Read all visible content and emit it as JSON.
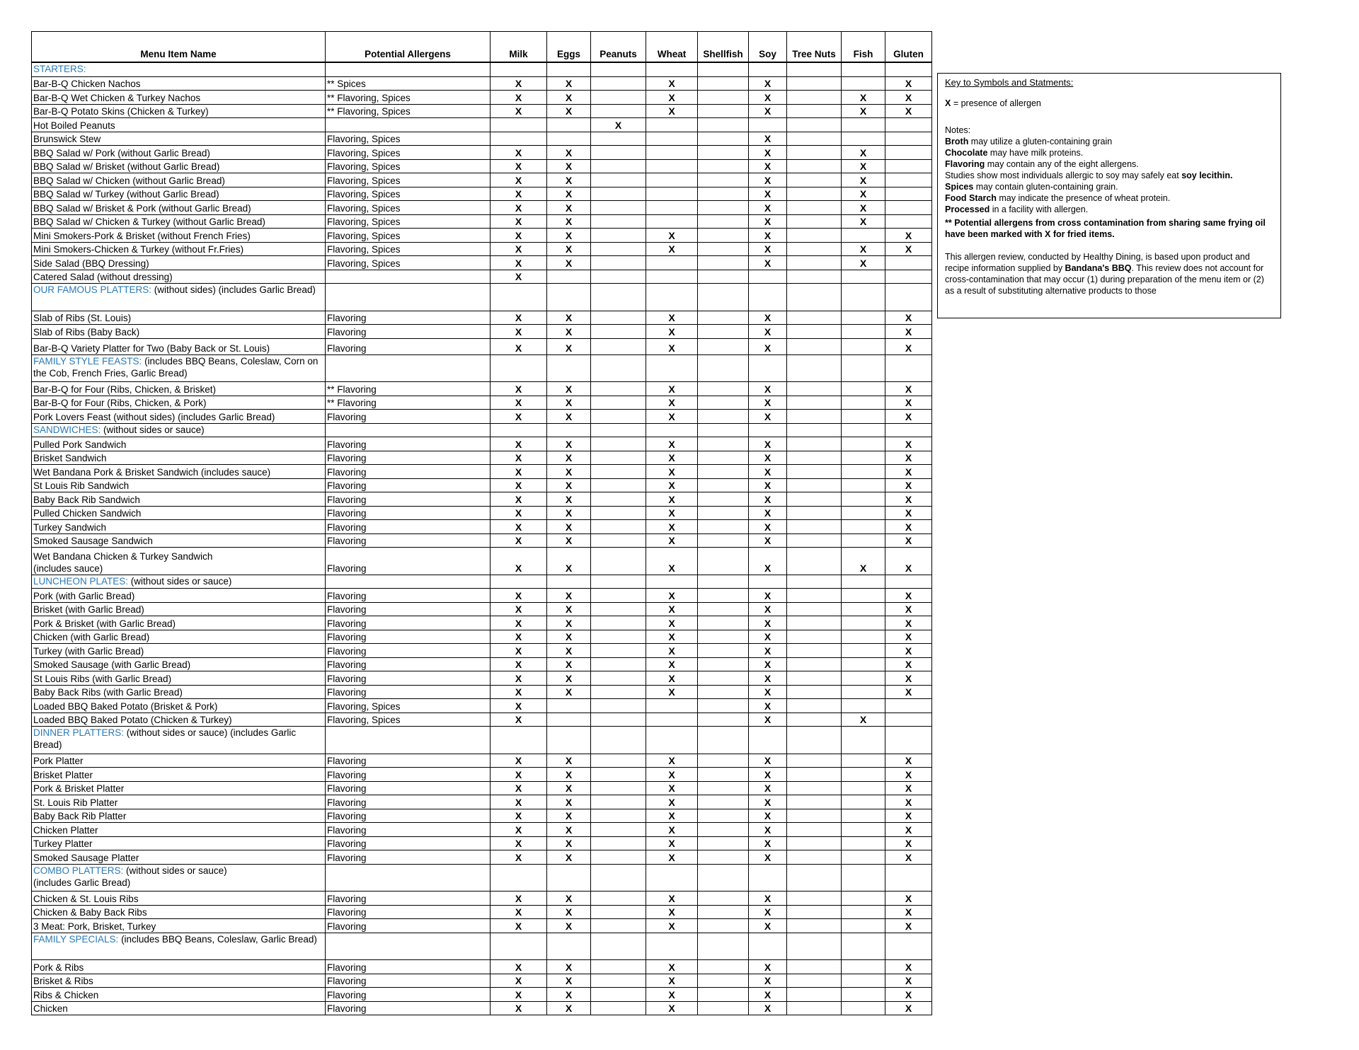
{
  "columns": {
    "name": "Menu Item Name",
    "potential": "Potential Allergens",
    "allergens": [
      "Milk",
      "Eggs",
      "Peanuts",
      "Wheat",
      "Shellfish",
      "Soy",
      "Tree Nuts",
      "Fish",
      "Gluten"
    ]
  },
  "mark_symbol": "X",
  "colors": {
    "section_heading": "#2a7ab8",
    "text": "#000000"
  },
  "rows": [
    {
      "section": "STARTERS:",
      "suffix": ""
    },
    {
      "name": "Bar-B-Q Chicken Nachos",
      "potential": "** Spices",
      "marks": [
        "Milk",
        "Eggs",
        "Wheat",
        "Soy",
        "Gluten"
      ]
    },
    {
      "name": "Bar-B-Q Wet Chicken & Turkey Nachos",
      "potential": "** Flavoring, Spices",
      "marks": [
        "Milk",
        "Eggs",
        "Wheat",
        "Soy",
        "Fish",
        "Gluten"
      ]
    },
    {
      "name": "Bar-B-Q Potato Skins (Chicken & Turkey)",
      "potential": "** Flavoring, Spices",
      "marks": [
        "Milk",
        "Eggs",
        "Wheat",
        "Soy",
        "Fish",
        "Gluten"
      ]
    },
    {
      "name": "Hot Boiled Peanuts",
      "potential": "",
      "marks": [
        "Peanuts"
      ]
    },
    {
      "name": "Brunswick Stew",
      "potential": "Flavoring, Spices",
      "marks": [
        "Soy"
      ]
    },
    {
      "name": "BBQ Salad w/ Pork (without Garlic Bread)",
      "potential": "Flavoring, Spices",
      "marks": [
        "Milk",
        "Eggs",
        "Soy",
        "Fish"
      ]
    },
    {
      "name": "BBQ Salad w/ Brisket (without Garlic Bread)",
      "potential": "Flavoring, Spices",
      "marks": [
        "Milk",
        "Eggs",
        "Soy",
        "Fish"
      ]
    },
    {
      "name": "BBQ Salad w/ Chicken (without Garlic Bread)",
      "potential": "Flavoring, Spices",
      "marks": [
        "Milk",
        "Eggs",
        "Soy",
        "Fish"
      ]
    },
    {
      "name": "BBQ Salad w/ Turkey (without Garlic Bread)",
      "potential": "Flavoring, Spices",
      "marks": [
        "Milk",
        "Eggs",
        "Soy",
        "Fish"
      ]
    },
    {
      "name": "BBQ Salad w/ Brisket & Pork (without Garlic Bread)",
      "potential": "Flavoring, Spices",
      "marks": [
        "Milk",
        "Eggs",
        "Soy",
        "Fish"
      ]
    },
    {
      "name": "BBQ Salad w/ Chicken & Turkey (without Garlic Bread)",
      "potential": "Flavoring, Spices",
      "marks": [
        "Milk",
        "Eggs",
        "Soy",
        "Fish"
      ]
    },
    {
      "name": "Mini Smokers-Pork & Brisket (without French Fries)",
      "potential": "Flavoring, Spices",
      "marks": [
        "Milk",
        "Eggs",
        "Wheat",
        "Soy",
        "Gluten"
      ]
    },
    {
      "name": "Mini Smokers-Chicken & Turkey (without Fr.Fries)",
      "potential": "Flavoring, Spices",
      "marks": [
        "Milk",
        "Eggs",
        "Wheat",
        "Soy",
        "Fish",
        "Gluten"
      ]
    },
    {
      "name": "Side Salad (BBQ Dressing)",
      "potential": "Flavoring, Spices",
      "marks": [
        "Milk",
        "Eggs",
        "Soy",
        "Fish"
      ]
    },
    {
      "name": "Catered Salad (without dressing)",
      "potential": "",
      "marks": [
        "Milk"
      ]
    },
    {
      "section": "OUR FAMOUS PLATTERS:",
      "suffix": " (without sides)             (includes Garlic Bread)"
    },
    {
      "name": "Slab of Ribs (St. Louis)",
      "potential": "Flavoring",
      "marks": [
        "Milk",
        "Eggs",
        "Wheat",
        "Soy",
        "Gluten"
      ]
    },
    {
      "name": "Slab of Ribs (Baby Back)",
      "potential": "Flavoring",
      "marks": [
        "Milk",
        "Eggs",
        "Wheat",
        "Soy",
        "Gluten"
      ]
    },
    {
      "name": "Bar-B-Q Variety Platter for Two (Baby Back or St. Louis)",
      "potential": "Flavoring",
      "marks": [
        "Milk",
        "Eggs",
        "Wheat",
        "Soy",
        "Gluten"
      ],
      "tall": true
    },
    {
      "section": "FAMILY STYLE FEASTS:",
      "suffix": " (includes BBQ Beans, Coleslaw, Corn on the Cob, French Fries, Garlic Bread)"
    },
    {
      "name": "Bar-B-Q for Four (Ribs, Chicken, & Brisket)",
      "potential": "** Flavoring",
      "marks": [
        "Milk",
        "Eggs",
        "Wheat",
        "Soy",
        "Gluten"
      ]
    },
    {
      "name": "Bar-B-Q for Four (Ribs, Chicken, & Pork)",
      "potential": "** Flavoring",
      "marks": [
        "Milk",
        "Eggs",
        "Wheat",
        "Soy",
        "Gluten"
      ]
    },
    {
      "name": "Pork Lovers Feast (without sides) (includes Garlic Bread)",
      "potential": "Flavoring",
      "marks": [
        "Milk",
        "Eggs",
        "Wheat",
        "Soy",
        "Gluten"
      ]
    },
    {
      "section": "SANDWICHES:",
      "suffix": " (without sides or sauce)"
    },
    {
      "name": "Pulled Pork Sandwich",
      "potential": "Flavoring",
      "marks": [
        "Milk",
        "Eggs",
        "Wheat",
        "Soy",
        "Gluten"
      ]
    },
    {
      "name": "Brisket Sandwich",
      "potential": "Flavoring",
      "marks": [
        "Milk",
        "Eggs",
        "Wheat",
        "Soy",
        "Gluten"
      ]
    },
    {
      "name": "Wet Bandana Pork & Brisket Sandwich (includes sauce)",
      "potential": "Flavoring",
      "marks": [
        "Milk",
        "Eggs",
        "Wheat",
        "Soy",
        "Gluten"
      ]
    },
    {
      "name": "St Louis Rib Sandwich",
      "potential": "Flavoring",
      "marks": [
        "Milk",
        "Eggs",
        "Wheat",
        "Soy",
        "Gluten"
      ]
    },
    {
      "name": "Baby Back Rib Sandwich",
      "potential": "Flavoring",
      "marks": [
        "Milk",
        "Eggs",
        "Wheat",
        "Soy",
        "Gluten"
      ]
    },
    {
      "name": "Pulled Chicken Sandwich",
      "potential": "Flavoring",
      "marks": [
        "Milk",
        "Eggs",
        "Wheat",
        "Soy",
        "Gluten"
      ]
    },
    {
      "name": "Turkey Sandwich",
      "potential": "Flavoring",
      "marks": [
        "Milk",
        "Eggs",
        "Wheat",
        "Soy",
        "Gluten"
      ]
    },
    {
      "name": "Smoked Sausage Sandwich",
      "potential": "Flavoring",
      "marks": [
        "Milk",
        "Eggs",
        "Wheat",
        "Soy",
        "Gluten"
      ]
    },
    {
      "name": "Wet Bandana Chicken & Turkey Sandwich\n(includes sauce)",
      "potential": "Flavoring",
      "marks": [
        "Milk",
        "Eggs",
        "Wheat",
        "Soy",
        "Fish",
        "Gluten"
      ],
      "two": true
    },
    {
      "section": "LUNCHEON PLATES:",
      "suffix": " (without sides or sauce)"
    },
    {
      "name": "Pork (with Garlic Bread)",
      "potential": "Flavoring",
      "marks": [
        "Milk",
        "Eggs",
        "Wheat",
        "Soy",
        "Gluten"
      ]
    },
    {
      "name": "Brisket (with Garlic Bread)",
      "potential": "Flavoring",
      "marks": [
        "Milk",
        "Eggs",
        "Wheat",
        "Soy",
        "Gluten"
      ]
    },
    {
      "name": "Pork & Brisket (with Garlic Bread)",
      "potential": "Flavoring",
      "marks": [
        "Milk",
        "Eggs",
        "Wheat",
        "Soy",
        "Gluten"
      ]
    },
    {
      "name": "Chicken (with Garlic Bread)",
      "potential": "Flavoring",
      "marks": [
        "Milk",
        "Eggs",
        "Wheat",
        "Soy",
        "Gluten"
      ]
    },
    {
      "name": "Turkey (with Garlic Bread)",
      "potential": "Flavoring",
      "marks": [
        "Milk",
        "Eggs",
        "Wheat",
        "Soy",
        "Gluten"
      ]
    },
    {
      "name": "Smoked Sausage (with Garlic Bread)",
      "potential": "Flavoring",
      "marks": [
        "Milk",
        "Eggs",
        "Wheat",
        "Soy",
        "Gluten"
      ]
    },
    {
      "name": "St Louis Ribs (with Garlic Bread)",
      "potential": "Flavoring",
      "marks": [
        "Milk",
        "Eggs",
        "Wheat",
        "Soy",
        "Gluten"
      ]
    },
    {
      "name": "Baby Back Ribs (with Garlic Bread)",
      "potential": "Flavoring",
      "marks": [
        "Milk",
        "Eggs",
        "Wheat",
        "Soy",
        "Gluten"
      ]
    },
    {
      "name": "Loaded BBQ Baked Potato (Brisket & Pork)",
      "potential": "Flavoring, Spices",
      "marks": [
        "Milk",
        "Soy"
      ]
    },
    {
      "name": "Loaded BBQ Baked Potato (Chicken & Turkey)",
      "potential": "Flavoring, Spices",
      "marks": [
        "Milk",
        "Soy",
        "Fish"
      ]
    },
    {
      "section": "DINNER PLATTERS:",
      "suffix": " (without sides or sauce)          (includes Garlic Bread)"
    },
    {
      "name": "Pork Platter",
      "potential": "Flavoring",
      "marks": [
        "Milk",
        "Eggs",
        "Wheat",
        "Soy",
        "Gluten"
      ]
    },
    {
      "name": "Brisket Platter",
      "potential": "Flavoring",
      "marks": [
        "Milk",
        "Eggs",
        "Wheat",
        "Soy",
        "Gluten"
      ]
    },
    {
      "name": "Pork & Brisket Platter",
      "potential": "Flavoring",
      "marks": [
        "Milk",
        "Eggs",
        "Wheat",
        "Soy",
        "Gluten"
      ]
    },
    {
      "name": "St. Louis Rib Platter",
      "potential": "Flavoring",
      "marks": [
        "Milk",
        "Eggs",
        "Wheat",
        "Soy",
        "Gluten"
      ]
    },
    {
      "name": "Baby Back Rib Platter",
      "potential": "Flavoring",
      "marks": [
        "Milk",
        "Eggs",
        "Wheat",
        "Soy",
        "Gluten"
      ]
    },
    {
      "name": "Chicken Platter",
      "potential": "Flavoring",
      "marks": [
        "Milk",
        "Eggs",
        "Wheat",
        "Soy",
        "Gluten"
      ]
    },
    {
      "name": "Turkey Platter",
      "potential": "Flavoring",
      "marks": [
        "Milk",
        "Eggs",
        "Wheat",
        "Soy",
        "Gluten"
      ]
    },
    {
      "name": "Smoked Sausage Platter",
      "potential": "Flavoring",
      "marks": [
        "Milk",
        "Eggs",
        "Wheat",
        "Soy",
        "Gluten"
      ]
    },
    {
      "section": "COMBO PLATTERS:",
      "suffix": " (without sides or sauce)\n(includes Garlic Bread)"
    },
    {
      "name": "Chicken & St. Louis Ribs",
      "potential": "Flavoring",
      "marks": [
        "Milk",
        "Eggs",
        "Wheat",
        "Soy",
        "Gluten"
      ]
    },
    {
      "name": "Chicken & Baby Back Ribs",
      "potential": "Flavoring",
      "marks": [
        "Milk",
        "Eggs",
        "Wheat",
        "Soy",
        "Gluten"
      ]
    },
    {
      "name": "3 Meat: Pork, Brisket, Turkey",
      "potential": "Flavoring",
      "marks": [
        "Milk",
        "Eggs",
        "Wheat",
        "Soy",
        "Gluten"
      ]
    },
    {
      "section": "FAMILY SPECIALS:",
      "suffix": " (includes BBQ Beans, Coleslaw,  Garlic Bread)"
    },
    {
      "name": "Pork & Ribs",
      "potential": "Flavoring",
      "marks": [
        "Milk",
        "Eggs",
        "Wheat",
        "Soy",
        "Gluten"
      ]
    },
    {
      "name": "Brisket & Ribs",
      "potential": "Flavoring",
      "marks": [
        "Milk",
        "Eggs",
        "Wheat",
        "Soy",
        "Gluten"
      ]
    },
    {
      "name": "Ribs & Chicken",
      "potential": "Flavoring",
      "marks": [
        "Milk",
        "Eggs",
        "Wheat",
        "Soy",
        "Gluten"
      ]
    },
    {
      "name": "Chicken",
      "potential": "Flavoring",
      "marks": [
        "Milk",
        "Eggs",
        "Wheat",
        "Soy",
        "Gluten"
      ]
    }
  ],
  "key": {
    "title": "Key to Symbols and Statments:",
    "symbol": "X",
    "symbol_text": " = presence of allergen",
    "notes_label": "Notes:",
    "notes": [
      {
        "b": "Broth",
        "t": " may utilize a gluten-containing grain"
      },
      {
        "b": "Chocolate",
        "t": " may have milk proteins."
      },
      {
        "b": "Flavoring",
        "t": " may contain any of the eight allergens."
      },
      {
        "t": "Studies show most individuals allergic to soy may safely eat ",
        "b2": "soy lecithin."
      },
      {
        "b": "Spices",
        "t": " may contain gluten-containing grain."
      },
      {
        "b": "Food Starch",
        "t": " may indicate the presence of wheat protein."
      },
      {
        "b": "Processed",
        "t": " in a facility with allergen."
      },
      {
        "b": "** Potential allergens from cross contamination from sharing same frying oil have been marked with X for fried items.",
        "t": ""
      }
    ],
    "review_pre": "This allergen review, conducted by Healthy Dining, is based upon product and recipe information supplied by ",
    "review_brand": "Bandana's BBQ",
    "review_post": ". This review does not account for cross-contamination that may occur (1) during preparation of the menu item or (2) as a result of substituting alternative products to those"
  }
}
